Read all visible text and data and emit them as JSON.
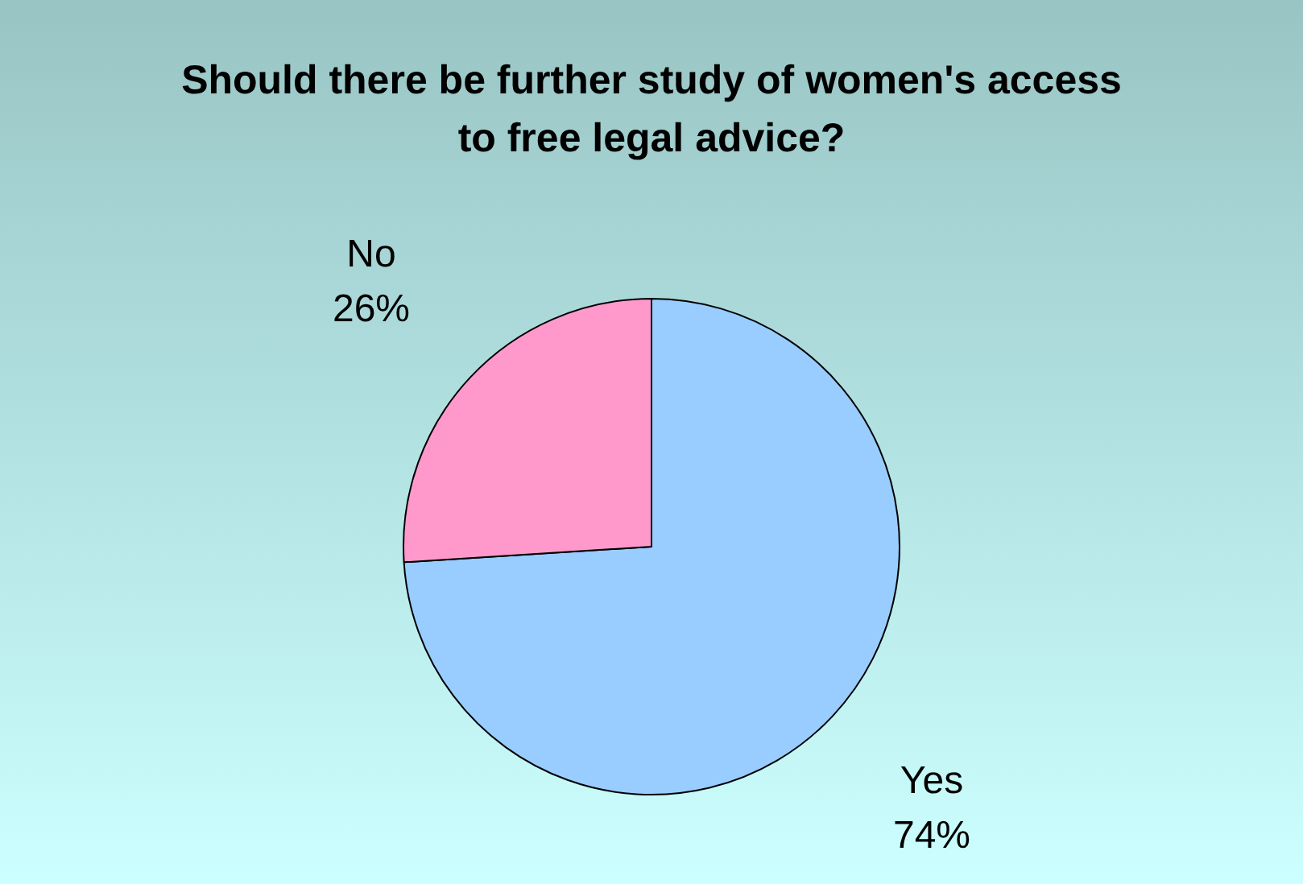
{
  "chart_data": {
    "type": "pie",
    "title": "Should there be further study of women's access to free legal advice?",
    "categories": [
      "Yes",
      "No"
    ],
    "values": [
      74,
      26
    ],
    "value_labels": [
      "74%",
      "26%"
    ],
    "colors": [
      "#99ccff",
      "#ff99cc"
    ],
    "legend": false
  }
}
